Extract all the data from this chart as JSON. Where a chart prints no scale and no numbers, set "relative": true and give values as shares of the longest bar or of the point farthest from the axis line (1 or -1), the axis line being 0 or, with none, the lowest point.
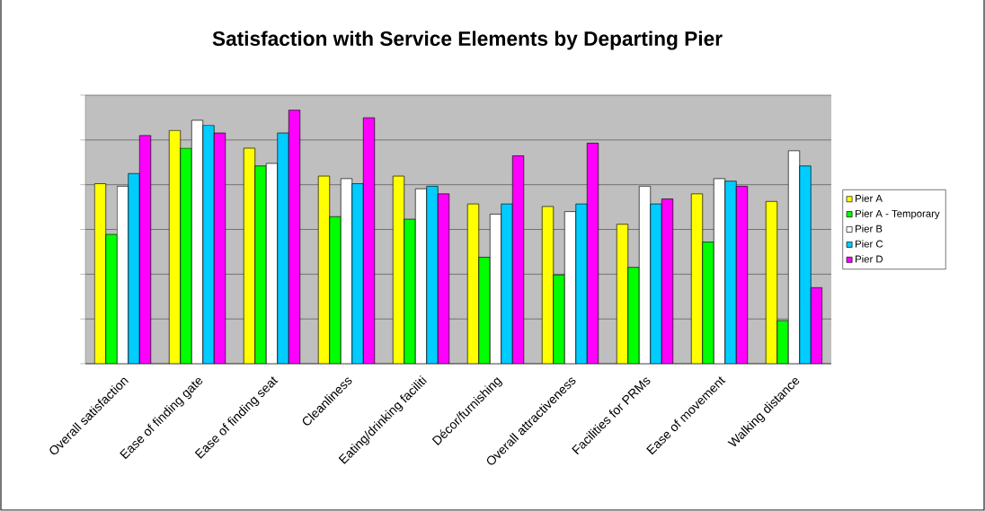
{
  "chart_data": {
    "type": "bar",
    "title": "Satisfaction with Service Elements by Departing Pier",
    "relative": true,
    "grid": "y",
    "legend": "right",
    "categories": [
      "Overall satisfaction",
      "Ease of finding gate",
      "Ease of finding seat",
      "Cleanliness",
      "Eating/drinking faciliti",
      "Décor/furnishing",
      "Overall attractiveness",
      "Facilities for PRMs",
      "Ease of movement",
      "Walking distance"
    ],
    "series": [
      {
        "name": "Pier A",
        "color": "#ffff00",
        "values": [
          0.71,
          0.92,
          0.85,
          0.74,
          0.74,
          0.63,
          0.62,
          0.55,
          0.67,
          0.64
        ]
      },
      {
        "name": "Pier A - Temporary",
        "color": "#00ff00",
        "values": [
          0.51,
          0.85,
          0.78,
          0.58,
          0.57,
          0.42,
          0.35,
          0.38,
          0.48,
          0.17
        ]
      },
      {
        "name": "Pier B",
        "color": "#ffffff",
        "values": [
          0.7,
          0.96,
          0.79,
          0.73,
          0.69,
          0.59,
          0.6,
          0.7,
          0.73,
          0.84
        ]
      },
      {
        "name": "Pier C",
        "color": "#00ccff",
        "values": [
          0.75,
          0.94,
          0.91,
          0.71,
          0.7,
          0.63,
          0.63,
          0.63,
          0.72,
          0.78
        ]
      },
      {
        "name": "Pier D",
        "color": "#ff00ff",
        "values": [
          0.9,
          0.91,
          1,
          0.97,
          0.67,
          0.82,
          0.87,
          0.65,
          0.7,
          0.3
        ]
      }
    ]
  }
}
